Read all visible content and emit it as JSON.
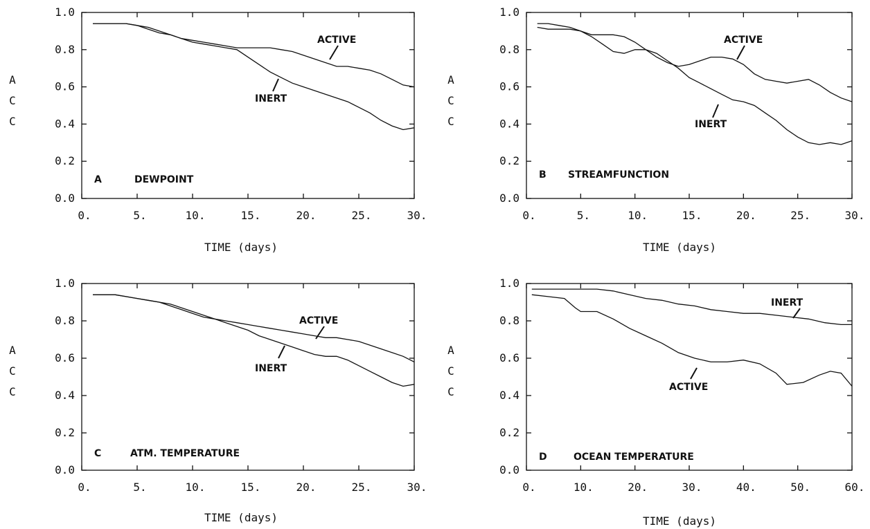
{
  "chart_data": [
    {
      "type": "line",
      "panel_letter": "A",
      "panel_title": "DEWPOINT",
      "xlabel": "TIME (days)",
      "ylabel": [
        "A",
        "C",
        "C"
      ],
      "xlim": [
        0,
        30
      ],
      "ylim": [
        0,
        1.0
      ],
      "xticks": [
        "0.",
        "5.",
        "10.",
        "15.",
        "20.",
        "25.",
        "30."
      ],
      "yticks": [
        "0.0",
        "0.2",
        "0.4",
        "0.6",
        "0.8",
        "1.0"
      ],
      "grid": false,
      "series": [
        {
          "name": "ACTIVE",
          "x": [
            1,
            2,
            3,
            4,
            5,
            6,
            7,
            8,
            9,
            10,
            11,
            12,
            13,
            14,
            15,
            16,
            17,
            18,
            19,
            20,
            21,
            22,
            23,
            24,
            25,
            26,
            27,
            28,
            29,
            30
          ],
          "y": [
            0.94,
            0.94,
            0.94,
            0.94,
            0.93,
            0.91,
            0.89,
            0.88,
            0.86,
            0.85,
            0.84,
            0.83,
            0.82,
            0.81,
            0.81,
            0.81,
            0.81,
            0.8,
            0.79,
            0.77,
            0.75,
            0.73,
            0.71,
            0.71,
            0.7,
            0.69,
            0.67,
            0.64,
            0.61,
            0.6
          ]
        },
        {
          "name": "INERT",
          "x": [
            1,
            2,
            3,
            4,
            5,
            6,
            7,
            8,
            9,
            10,
            11,
            12,
            13,
            14,
            15,
            16,
            17,
            18,
            19,
            20,
            21,
            22,
            23,
            24,
            25,
            26,
            27,
            28,
            29,
            30
          ],
          "y": [
            0.94,
            0.94,
            0.94,
            0.94,
            0.93,
            0.92,
            0.9,
            0.88,
            0.86,
            0.84,
            0.83,
            0.82,
            0.81,
            0.8,
            0.76,
            0.72,
            0.68,
            0.65,
            0.62,
            0.6,
            0.58,
            0.56,
            0.54,
            0.52,
            0.49,
            0.46,
            0.42,
            0.39,
            0.37,
            0.38
          ]
        }
      ]
    },
    {
      "type": "line",
      "panel_letter": "B",
      "panel_title": "STREAMFUNCTION",
      "xlabel": "TIME (days)",
      "ylabel": [
        "A",
        "C",
        "C"
      ],
      "xlim": [
        0,
        30
      ],
      "ylim": [
        0,
        1.0
      ],
      "xticks": [
        "0.",
        "5.",
        "10.",
        "15.",
        "20.",
        "25.",
        "30."
      ],
      "yticks": [
        "0.0",
        "0.2",
        "0.4",
        "0.6",
        "0.8",
        "1.0"
      ],
      "grid": false,
      "series": [
        {
          "name": "ACTIVE",
          "x": [
            1,
            2,
            3,
            4,
            5,
            6,
            7,
            8,
            9,
            10,
            11,
            12,
            13,
            14,
            15,
            16,
            17,
            18,
            19,
            20,
            21,
            22,
            23,
            24,
            25,
            26,
            27,
            28,
            29,
            30
          ],
          "y": [
            0.92,
            0.91,
            0.91,
            0.91,
            0.9,
            0.88,
            0.88,
            0.88,
            0.87,
            0.84,
            0.8,
            0.76,
            0.73,
            0.71,
            0.72,
            0.74,
            0.76,
            0.76,
            0.75,
            0.72,
            0.67,
            0.64,
            0.63,
            0.62,
            0.63,
            0.64,
            0.61,
            0.57,
            0.54,
            0.52
          ]
        },
        {
          "name": "INERT",
          "x": [
            1,
            2,
            3,
            4,
            5,
            6,
            7,
            8,
            9,
            10,
            11,
            12,
            13,
            14,
            15,
            16,
            17,
            18,
            19,
            20,
            21,
            22,
            23,
            24,
            25,
            26,
            27,
            28,
            29,
            30
          ],
          "y": [
            0.94,
            0.94,
            0.93,
            0.92,
            0.9,
            0.87,
            0.83,
            0.79,
            0.78,
            0.8,
            0.8,
            0.78,
            0.74,
            0.7,
            0.65,
            0.62,
            0.59,
            0.56,
            0.53,
            0.52,
            0.5,
            0.46,
            0.42,
            0.37,
            0.33,
            0.3,
            0.29,
            0.3,
            0.29,
            0.31
          ]
        }
      ]
    },
    {
      "type": "line",
      "panel_letter": "C",
      "panel_title": "ATM. TEMPERATURE",
      "xlabel": "TIME (days)",
      "ylabel": [
        "A",
        "C",
        "C"
      ],
      "xlim": [
        0,
        30
      ],
      "ylim": [
        0,
        1.0
      ],
      "xticks": [
        "0.",
        "5.",
        "10.",
        "15.",
        "20.",
        "25.",
        "30."
      ],
      "yticks": [
        "0.0",
        "0.2",
        "0.4",
        "0.6",
        "0.8",
        "1.0"
      ],
      "grid": false,
      "series": [
        {
          "name": "ACTIVE",
          "x": [
            1,
            2,
            3,
            4,
            5,
            6,
            7,
            8,
            9,
            10,
            11,
            12,
            13,
            14,
            15,
            16,
            17,
            18,
            19,
            20,
            21,
            22,
            23,
            24,
            25,
            26,
            27,
            28,
            29,
            30
          ],
          "y": [
            0.94,
            0.94,
            0.94,
            0.93,
            0.92,
            0.91,
            0.9,
            0.88,
            0.86,
            0.84,
            0.82,
            0.81,
            0.8,
            0.79,
            0.78,
            0.77,
            0.76,
            0.75,
            0.74,
            0.73,
            0.72,
            0.71,
            0.71,
            0.7,
            0.69,
            0.67,
            0.65,
            0.63,
            0.61,
            0.58
          ]
        },
        {
          "name": "INERT",
          "x": [
            1,
            2,
            3,
            4,
            5,
            6,
            7,
            8,
            9,
            10,
            11,
            12,
            13,
            14,
            15,
            16,
            17,
            18,
            19,
            20,
            21,
            22,
            23,
            24,
            25,
            26,
            27,
            28,
            29,
            30
          ],
          "y": [
            0.94,
            0.94,
            0.94,
            0.93,
            0.92,
            0.91,
            0.9,
            0.89,
            0.87,
            0.85,
            0.83,
            0.81,
            0.79,
            0.77,
            0.75,
            0.72,
            0.7,
            0.68,
            0.66,
            0.64,
            0.62,
            0.61,
            0.61,
            0.59,
            0.56,
            0.53,
            0.5,
            0.47,
            0.45,
            0.46
          ]
        }
      ]
    },
    {
      "type": "line",
      "panel_letter": "D",
      "panel_title": "OCEAN TEMPERATURE",
      "xlabel": "TIME (days)",
      "ylabel": [
        "A",
        "C",
        "C"
      ],
      "xlim": [
        0,
        60
      ],
      "ylim": [
        0,
        1.0
      ],
      "xticks": [
        "0.",
        "10.",
        "20.",
        "30.",
        "40.",
        "50.",
        "60."
      ],
      "yticks": [
        "0.0",
        "0.2",
        "0.4",
        "0.6",
        "0.8",
        "1.0"
      ],
      "grid": false,
      "series": [
        {
          "name": "INERT",
          "x": [
            1,
            4,
            7,
            10,
            13,
            16,
            19,
            22,
            25,
            28,
            31,
            34,
            37,
            40,
            43,
            46,
            49,
            52,
            55,
            58,
            60
          ],
          "y": [
            0.97,
            0.97,
            0.97,
            0.97,
            0.97,
            0.96,
            0.94,
            0.92,
            0.91,
            0.89,
            0.88,
            0.86,
            0.85,
            0.84,
            0.84,
            0.83,
            0.82,
            0.81,
            0.79,
            0.78,
            0.78
          ]
        },
        {
          "name": "ACTIVE",
          "x": [
            1,
            4,
            7,
            9,
            10,
            13,
            16,
            19,
            22,
            25,
            28,
            31,
            34,
            37,
            40,
            43,
            46,
            48,
            51,
            54,
            56,
            58,
            60
          ],
          "y": [
            0.94,
            0.93,
            0.92,
            0.87,
            0.85,
            0.85,
            0.81,
            0.76,
            0.72,
            0.68,
            0.63,
            0.6,
            0.58,
            0.58,
            0.59,
            0.57,
            0.52,
            0.46,
            0.47,
            0.51,
            0.53,
            0.52,
            0.45
          ]
        }
      ]
    }
  ]
}
